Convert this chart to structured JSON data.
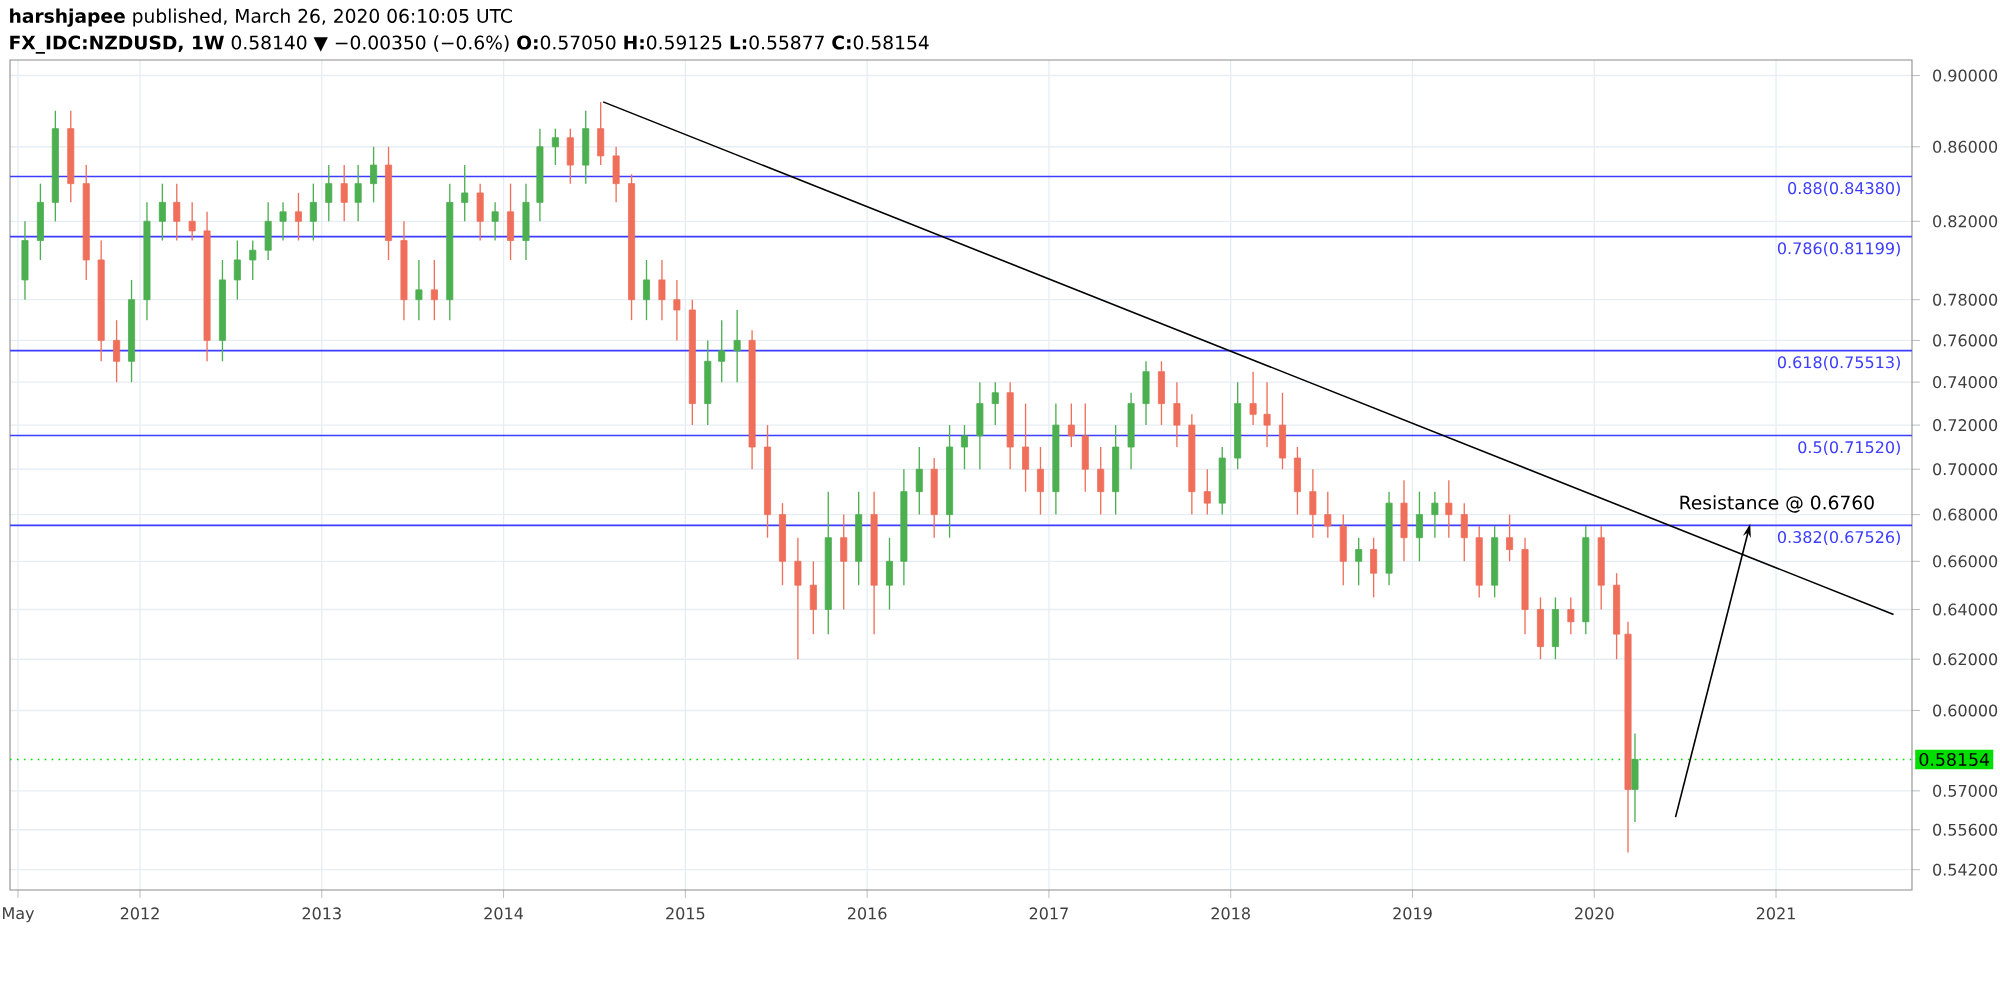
{
  "chart_data": {
    "type": "candlestick",
    "title": "**harshjapee** published, March 26, 2020 06:10:05 UTC",
    "subtitle": "**FX_IDC:NZDUSD, 1W** 0.58140 ▼ −0.00350 (−0.6%) **O:**0.57050 **H:**0.59125 **L:**0.55877 **C:**0.58154",
    "x": [
      "2011-05-15",
      "2011-06-15",
      "2011-07-15",
      "2011-08-15",
      "2011-09-15",
      "2011-10-15",
      "2011-11-15",
      "2011-12-15",
      "2012-01-15",
      "2012-02-15",
      "2012-03-15",
      "2012-04-15",
      "2012-05-15",
      "2012-06-15",
      "2012-07-15",
      "2012-08-15",
      "2012-09-15",
      "2012-10-15",
      "2012-11-15",
      "2012-12-15",
      "2013-01-15",
      "2013-02-15",
      "2013-03-15",
      "2013-04-15",
      "2013-05-15",
      "2013-06-15",
      "2013-07-15",
      "2013-08-15",
      "2013-09-15",
      "2013-10-15",
      "2013-11-15",
      "2013-12-15",
      "2014-01-15",
      "2014-02-15",
      "2014-03-15",
      "2014-04-15",
      "2014-05-15",
      "2014-06-15",
      "2014-07-15",
      "2014-08-15",
      "2014-09-15",
      "2014-10-15",
      "2014-11-15",
      "2014-12-15",
      "2015-01-15",
      "2015-02-15",
      "2015-03-15",
      "2015-04-15",
      "2015-05-15",
      "2015-06-15",
      "2015-07-15",
      "2015-08-15",
      "2015-09-15",
      "2015-10-15",
      "2015-11-15",
      "2015-12-15",
      "2016-01-15",
      "2016-02-15",
      "2016-03-15",
      "2016-04-15",
      "2016-05-15",
      "2016-06-15",
      "2016-07-15",
      "2016-08-15",
      "2016-09-15",
      "2016-10-15",
      "2016-11-15",
      "2016-12-15",
      "2017-01-15",
      "2017-02-15",
      "2017-03-15",
      "2017-04-15",
      "2017-05-15",
      "2017-06-15",
      "2017-07-15",
      "2017-08-15",
      "2017-09-15",
      "2017-10-15",
      "2017-11-15",
      "2017-12-15",
      "2018-01-15",
      "2018-02-15",
      "2018-03-15",
      "2018-04-15",
      "2018-05-15",
      "2018-06-15",
      "2018-07-15",
      "2018-08-15",
      "2018-09-15",
      "2018-10-15",
      "2018-11-15",
      "2018-12-15",
      "2019-01-15",
      "2019-02-15",
      "2019-03-15",
      "2019-04-15",
      "2019-05-15",
      "2019-06-15",
      "2019-07-15",
      "2019-08-15",
      "2019-09-15",
      "2019-10-15",
      "2019-11-15",
      "2019-12-15",
      "2020-01-15",
      "2020-02-15",
      "2020-03-09",
      "2020-03-23"
    ],
    "ohlc": [
      [
        0.79,
        0.82,
        0.78,
        0.81
      ],
      [
        0.81,
        0.84,
        0.8,
        0.83
      ],
      [
        0.83,
        0.88,
        0.82,
        0.87
      ],
      [
        0.87,
        0.88,
        0.83,
        0.84
      ],
      [
        0.84,
        0.85,
        0.79,
        0.8
      ],
      [
        0.8,
        0.81,
        0.75,
        0.76
      ],
      [
        0.76,
        0.77,
        0.74,
        0.75
      ],
      [
        0.75,
        0.79,
        0.74,
        0.78
      ],
      [
        0.78,
        0.83,
        0.77,
        0.82
      ],
      [
        0.82,
        0.84,
        0.81,
        0.83
      ],
      [
        0.83,
        0.84,
        0.81,
        0.82
      ],
      [
        0.82,
        0.83,
        0.81,
        0.815
      ],
      [
        0.815,
        0.825,
        0.75,
        0.76
      ],
      [
        0.76,
        0.8,
        0.75,
        0.79
      ],
      [
        0.79,
        0.81,
        0.78,
        0.8
      ],
      [
        0.8,
        0.81,
        0.79,
        0.805
      ],
      [
        0.805,
        0.83,
        0.8,
        0.82
      ],
      [
        0.82,
        0.83,
        0.81,
        0.825
      ],
      [
        0.825,
        0.835,
        0.81,
        0.82
      ],
      [
        0.82,
        0.84,
        0.81,
        0.83
      ],
      [
        0.83,
        0.85,
        0.82,
        0.84
      ],
      [
        0.84,
        0.85,
        0.82,
        0.83
      ],
      [
        0.83,
        0.85,
        0.82,
        0.84
      ],
      [
        0.84,
        0.86,
        0.83,
        0.85
      ],
      [
        0.85,
        0.86,
        0.8,
        0.81
      ],
      [
        0.81,
        0.82,
        0.77,
        0.78
      ],
      [
        0.78,
        0.8,
        0.77,
        0.785
      ],
      [
        0.785,
        0.8,
        0.77,
        0.78
      ],
      [
        0.78,
        0.84,
        0.77,
        0.83
      ],
      [
        0.83,
        0.85,
        0.82,
        0.835
      ],
      [
        0.835,
        0.84,
        0.81,
        0.82
      ],
      [
        0.82,
        0.83,
        0.81,
        0.825
      ],
      [
        0.825,
        0.84,
        0.8,
        0.81
      ],
      [
        0.81,
        0.84,
        0.8,
        0.83
      ],
      [
        0.83,
        0.87,
        0.82,
        0.86
      ],
      [
        0.86,
        0.87,
        0.85,
        0.865
      ],
      [
        0.865,
        0.87,
        0.84,
        0.85
      ],
      [
        0.85,
        0.88,
        0.84,
        0.87
      ],
      [
        0.87,
        0.885,
        0.85,
        0.855
      ],
      [
        0.855,
        0.86,
        0.83,
        0.84
      ],
      [
        0.84,
        0.845,
        0.77,
        0.78
      ],
      [
        0.78,
        0.8,
        0.77,
        0.79
      ],
      [
        0.79,
        0.8,
        0.77,
        0.78
      ],
      [
        0.78,
        0.79,
        0.76,
        0.775
      ],
      [
        0.775,
        0.78,
        0.72,
        0.73
      ],
      [
        0.73,
        0.76,
        0.72,
        0.75
      ],
      [
        0.75,
        0.77,
        0.74,
        0.755
      ],
      [
        0.755,
        0.775,
        0.74,
        0.76
      ],
      [
        0.76,
        0.765,
        0.7,
        0.71
      ],
      [
        0.71,
        0.72,
        0.67,
        0.68
      ],
      [
        0.68,
        0.685,
        0.65,
        0.66
      ],
      [
        0.66,
        0.67,
        0.62,
        0.65
      ],
      [
        0.65,
        0.66,
        0.63,
        0.64
      ],
      [
        0.64,
        0.69,
        0.63,
        0.67
      ],
      [
        0.67,
        0.68,
        0.64,
        0.66
      ],
      [
        0.66,
        0.69,
        0.65,
        0.68
      ],
      [
        0.68,
        0.69,
        0.63,
        0.65
      ],
      [
        0.65,
        0.67,
        0.64,
        0.66
      ],
      [
        0.66,
        0.7,
        0.65,
        0.69
      ],
      [
        0.69,
        0.71,
        0.68,
        0.7
      ],
      [
        0.7,
        0.705,
        0.67,
        0.68
      ],
      [
        0.68,
        0.72,
        0.67,
        0.71
      ],
      [
        0.71,
        0.72,
        0.7,
        0.715
      ],
      [
        0.715,
        0.74,
        0.7,
        0.73
      ],
      [
        0.73,
        0.74,
        0.72,
        0.735
      ],
      [
        0.735,
        0.74,
        0.7,
        0.71
      ],
      [
        0.71,
        0.73,
        0.69,
        0.7
      ],
      [
        0.7,
        0.71,
        0.68,
        0.69
      ],
      [
        0.69,
        0.73,
        0.68,
        0.72
      ],
      [
        0.72,
        0.73,
        0.71,
        0.715
      ],
      [
        0.715,
        0.73,
        0.69,
        0.7
      ],
      [
        0.7,
        0.71,
        0.68,
        0.69
      ],
      [
        0.69,
        0.72,
        0.68,
        0.71
      ],
      [
        0.71,
        0.735,
        0.7,
        0.73
      ],
      [
        0.73,
        0.75,
        0.72,
        0.745
      ],
      [
        0.745,
        0.75,
        0.72,
        0.73
      ],
      [
        0.73,
        0.74,
        0.71,
        0.72
      ],
      [
        0.72,
        0.725,
        0.68,
        0.69
      ],
      [
        0.69,
        0.7,
        0.68,
        0.685
      ],
      [
        0.685,
        0.71,
        0.68,
        0.705
      ],
      [
        0.705,
        0.74,
        0.7,
        0.73
      ],
      [
        0.73,
        0.745,
        0.72,
        0.725
      ],
      [
        0.725,
        0.74,
        0.71,
        0.72
      ],
      [
        0.72,
        0.735,
        0.7,
        0.705
      ],
      [
        0.705,
        0.71,
        0.68,
        0.69
      ],
      [
        0.69,
        0.7,
        0.67,
        0.68
      ],
      [
        0.68,
        0.69,
        0.67,
        0.675
      ],
      [
        0.675,
        0.68,
        0.65,
        0.66
      ],
      [
        0.66,
        0.67,
        0.65,
        0.665
      ],
      [
        0.665,
        0.67,
        0.645,
        0.655
      ],
      [
        0.655,
        0.69,
        0.65,
        0.685
      ],
      [
        0.685,
        0.695,
        0.66,
        0.67
      ],
      [
        0.67,
        0.69,
        0.66,
        0.68
      ],
      [
        0.68,
        0.69,
        0.67,
        0.685
      ],
      [
        0.685,
        0.695,
        0.67,
        0.68
      ],
      [
        0.68,
        0.685,
        0.66,
        0.67
      ],
      [
        0.67,
        0.675,
        0.645,
        0.65
      ],
      [
        0.65,
        0.675,
        0.645,
        0.67
      ],
      [
        0.67,
        0.68,
        0.66,
        0.665
      ],
      [
        0.665,
        0.67,
        0.63,
        0.64
      ],
      [
        0.64,
        0.645,
        0.62,
        0.625
      ],
      [
        0.625,
        0.645,
        0.62,
        0.64
      ],
      [
        0.64,
        0.645,
        0.63,
        0.635
      ],
      [
        0.635,
        0.675,
        0.63,
        0.67
      ],
      [
        0.67,
        0.675,
        0.64,
        0.65
      ],
      [
        0.65,
        0.655,
        0.62,
        0.63
      ],
      [
        0.63,
        0.635,
        0.548,
        0.5705
      ],
      [
        0.5705,
        0.59125,
        0.55877,
        0.58154
      ]
    ],
    "colors": [
      "#4caf50",
      "#4caf50",
      "#4caf50",
      "#ef6f5a",
      "#ef6f5a",
      "#ef6f5a",
      "#ef6f5a",
      "#4caf50",
      "#4caf50",
      "#4caf50",
      "#ef6f5a",
      "#ef6f5a",
      "#ef6f5a",
      "#4caf50",
      "#4caf50",
      "#4caf50",
      "#4caf50",
      "#4caf50",
      "#ef6f5a",
      "#4caf50",
      "#4caf50",
      "#ef6f5a",
      "#4caf50",
      "#4caf50",
      "#ef6f5a",
      "#ef6f5a",
      "#4caf50",
      "#ef6f5a",
      "#4caf50",
      "#4caf50",
      "#ef6f5a",
      "#4caf50",
      "#ef6f5a",
      "#4caf50",
      "#4caf50",
      "#4caf50",
      "#ef6f5a",
      "#4caf50",
      "#ef6f5a",
      "#ef6f5a",
      "#ef6f5a",
      "#4caf50",
      "#ef6f5a",
      "#ef6f5a",
      "#ef6f5a",
      "#4caf50",
      "#4caf50",
      "#4caf50",
      "#ef6f5a",
      "#ef6f5a",
      "#ef6f5a",
      "#ef6f5a",
      "#ef6f5a",
      "#4caf50",
      "#ef6f5a",
      "#4caf50",
      "#ef6f5a",
      "#4caf50",
      "#4caf50",
      "#4caf50",
      "#ef6f5a",
      "#4caf50",
      "#4caf50",
      "#4caf50",
      "#4caf50",
      "#ef6f5a",
      "#ef6f5a",
      "#ef6f5a",
      "#4caf50",
      "#ef6f5a",
      "#ef6f5a",
      "#ef6f5a",
      "#4caf50",
      "#4caf50",
      "#4caf50",
      "#ef6f5a",
      "#ef6f5a",
      "#ef6f5a",
      "#ef6f5a",
      "#4caf50",
      "#4caf50",
      "#ef6f5a",
      "#ef6f5a",
      "#ef6f5a",
      "#ef6f5a",
      "#ef6f5a",
      "#ef6f5a",
      "#ef6f5a",
      "#4caf50",
      "#ef6f5a",
      "#4caf50",
      "#ef6f5a",
      "#4caf50",
      "#4caf50",
      "#ef6f5a",
      "#ef6f5a",
      "#ef6f5a",
      "#4caf50",
      "#ef6f5a",
      "#ef6f5a",
      "#ef6f5a",
      "#4caf50",
      "#ef6f5a",
      "#4caf50",
      "#ef6f5a",
      "#ef6f5a",
      "#ef6f5a",
      "#4caf50"
    ],
    "series": [
      {
        "type": "line",
        "color": "#000000",
        "x": [
          "2014-07-20",
          "2021-08-25"
        ],
        "values": [
          0.885,
          0.638
        ]
      }
    ],
    "annotations": [
      {
        "text": "Resistance @ 0.6760",
        "x": "2020-11-10",
        "y": 0.676
      }
    ],
    "ref_lines": [
      {
        "axis": "y",
        "value": 0.8438,
        "label": "0.88(0.84380)",
        "color": "#3d3dff"
      },
      {
        "axis": "y",
        "value": 0.81199,
        "label": "0.786(0.81199)",
        "color": "#3d3dff"
      },
      {
        "axis": "y",
        "value": 0.75513,
        "label": "0.618(0.75513)",
        "color": "#3d3dff"
      },
      {
        "axis": "y",
        "value": 0.7152,
        "label": "0.5(0.71520)",
        "color": "#3d3dff"
      },
      {
        "axis": "y",
        "value": 0.67526,
        "label": "0.382(0.67526)",
        "color": "#3d3dff"
      },
      {
        "axis": "y",
        "value": 0.58154,
        "label": "0.58154",
        "color": "#00e000",
        "line_style": "dotted"
      }
    ],
    "log": "y",
    "grid": true,
    "xlim": [
      "2011-04-15",
      "2021-10-01"
    ],
    "xticks": [
      {
        "value": "2011-05-01",
        "label": "May"
      },
      {
        "value": "2012-01-01",
        "label": "2012"
      },
      {
        "value": "2013-01-01",
        "label": "2013"
      },
      {
        "value": "2014-01-01",
        "label": "2014"
      },
      {
        "value": "2015-01-01",
        "label": "2015"
      },
      {
        "value": "2016-01-01",
        "label": "2016"
      },
      {
        "value": "2017-01-01",
        "label": "2017"
      },
      {
        "value": "2018-01-01",
        "label": "2018"
      },
      {
        "value": "2019-01-01",
        "label": "2019"
      },
      {
        "value": "2020-01-01",
        "label": "2020"
      },
      {
        "value": "2021-01-01",
        "label": "2021"
      }
    ],
    "ylim": [
      0.535,
      0.909
    ],
    "yticks": [
      {
        "value": 0.542,
        "label": "0.54200"
      },
      {
        "value": 0.556,
        "label": "0.55600"
      },
      {
        "value": 0.57,
        "label": "0.57000"
      },
      {
        "value": 0.6,
        "label": "0.60000"
      },
      {
        "value": 0.62,
        "label": "0.62000"
      },
      {
        "value": 0.64,
        "label": "0.64000"
      },
      {
        "value": 0.66,
        "label": "0.66000"
      },
      {
        "value": 0.68,
        "label": "0.68000"
      },
      {
        "value": 0.7,
        "label": "0.70000"
      },
      {
        "value": 0.72,
        "label": "0.72000"
      },
      {
        "value": 0.74,
        "label": "0.74000"
      },
      {
        "value": 0.76,
        "label": "0.76000"
      },
      {
        "value": 0.78,
        "label": "0.78000"
      },
      {
        "value": 0.82,
        "label": "0.82000"
      },
      {
        "value": 0.86,
        "label": "0.86000"
      },
      {
        "value": 0.9,
        "label": "0.90000"
      }
    ]
  }
}
